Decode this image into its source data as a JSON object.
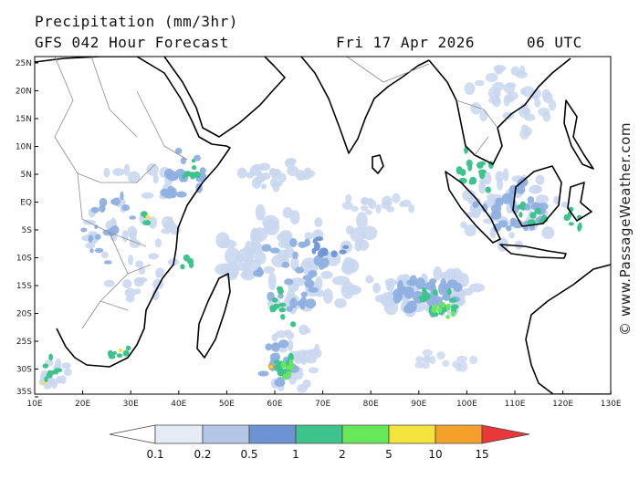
{
  "header": {
    "title": "Precipitation (mm/3hr)",
    "subtitle": "GFS 042 Hour Forecast",
    "date": "Fri 17 Apr 2026",
    "time": "06 UTC"
  },
  "credit": "© www.PassageWeather.com",
  "axes": {
    "lat_labels": [
      "25N",
      "20N",
      "15N",
      "10N",
      "5N",
      "EQ",
      "5S",
      "10S",
      "15S",
      "20S",
      "25S",
      "30S",
      "35S"
    ],
    "lon_labels": [
      "10E",
      "20E",
      "30E",
      "40E",
      "50E",
      "60E",
      "70E",
      "80E",
      "90E",
      "100E",
      "110E",
      "120E",
      "130E"
    ]
  },
  "legend": {
    "labels": [
      "0.1",
      "0.2",
      "0.5",
      "1",
      "2",
      "5",
      "10",
      "15"
    ],
    "colors": [
      "#ffffff",
      "#e6ecf5",
      "#b3c6e6",
      "#6e93d4",
      "#3cc48c",
      "#66e85a",
      "#f2e43c",
      "#f5a02a",
      "#e8383a"
    ]
  },
  "colors": {
    "light": "#c9d7ee",
    "mid": "#8fb0e0",
    "blue": "#6e93d4",
    "teal": "#3cc48c",
    "green": "#66e85a",
    "yellow": "#f2e43c",
    "orange": "#f5a02a",
    "coast": "#000000",
    "border": "#8a8a8a"
  }
}
